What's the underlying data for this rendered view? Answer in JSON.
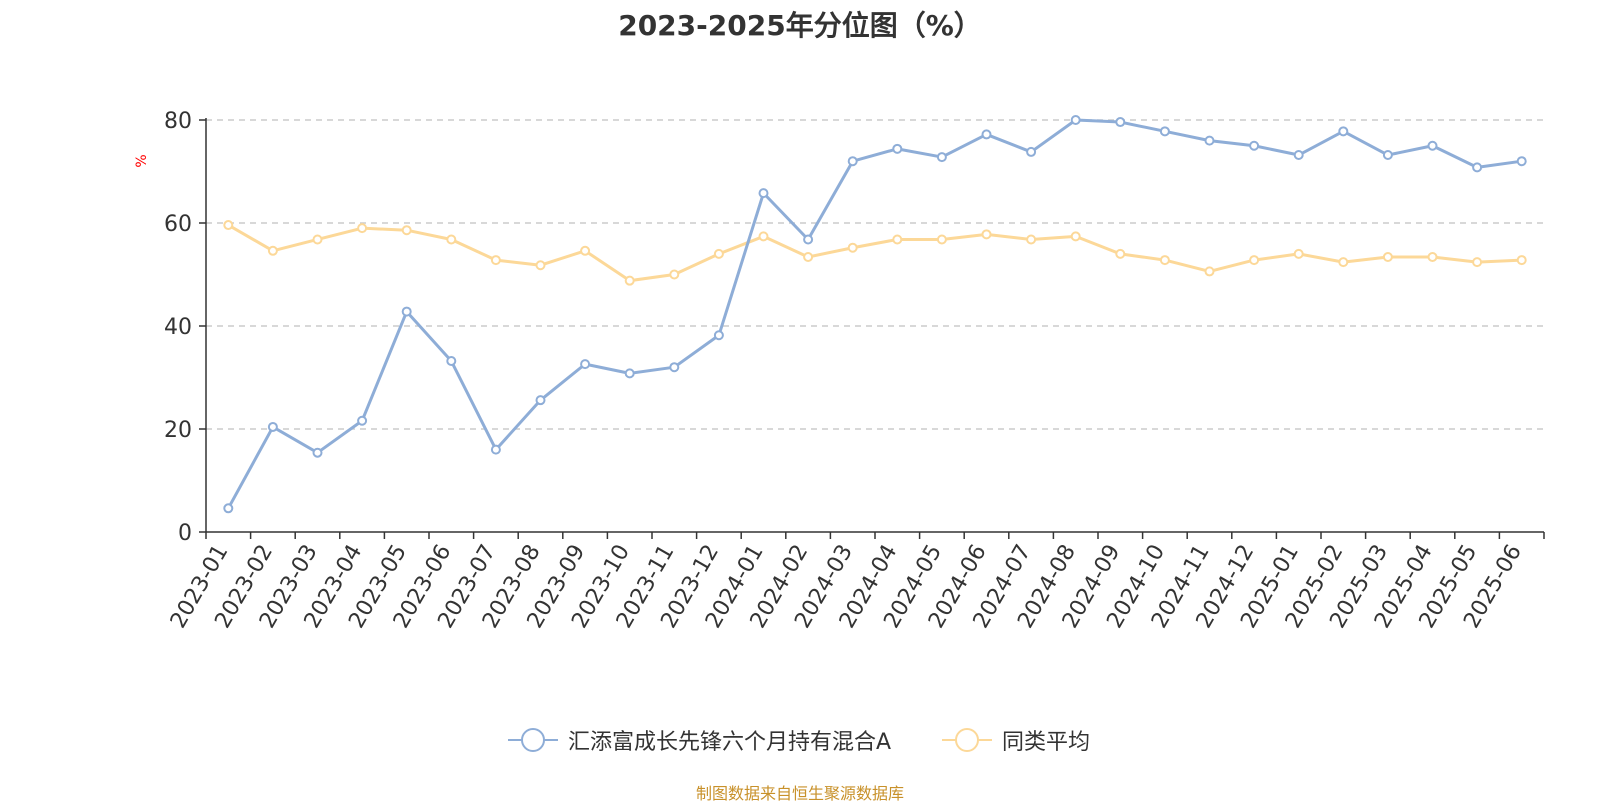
{
  "chart_data": {
    "type": "line",
    "title": "2023-2025年分位图（%）",
    "ylabel": "%",
    "xlabel": "",
    "ylim": [
      0,
      80
    ],
    "yticks": [
      0,
      20,
      40,
      60,
      80
    ],
    "grid": true,
    "legend_position": "bottom",
    "categories": [
      "2023-01",
      "2023-02",
      "2023-03",
      "2023-04",
      "2023-05",
      "2023-06",
      "2023-07",
      "2023-08",
      "2023-09",
      "2023-10",
      "2023-11",
      "2023-12",
      "2024-01",
      "2024-02",
      "2024-03",
      "2024-04",
      "2024-05",
      "2024-06",
      "2024-07",
      "2024-08",
      "2024-09",
      "2024-10",
      "2024-11",
      "2024-12",
      "2025-01",
      "2025-02",
      "2025-03",
      "2025-04",
      "2025-05",
      "2025-06"
    ],
    "series": [
      {
        "name": "汇添富成长先锋六个月持有混合A",
        "color": "#8eadd7",
        "values": [
          4.6,
          20.4,
          15.4,
          21.6,
          42.8,
          33.2,
          16.0,
          25.6,
          32.6,
          30.8,
          32.0,
          38.2,
          65.8,
          56.8,
          72.0,
          74.4,
          72.8,
          77.2,
          73.8,
          80.0,
          79.6,
          77.8,
          76.0,
          75.0,
          73.2,
          77.8,
          73.2,
          75.0,
          70.8,
          72.0
        ]
      },
      {
        "name": "同类平均",
        "color": "#fcd898",
        "values": [
          59.6,
          54.6,
          56.8,
          59.0,
          58.6,
          56.8,
          52.8,
          51.8,
          54.6,
          48.8,
          50.0,
          54.0,
          57.4,
          53.4,
          55.2,
          56.8,
          56.8,
          57.8,
          56.8,
          57.4,
          54.0,
          52.8,
          50.6,
          52.8,
          54.0,
          52.4,
          53.4,
          53.4,
          52.4,
          52.8
        ]
      }
    ]
  },
  "source_note": "制图数据来自恒生聚源数据库"
}
